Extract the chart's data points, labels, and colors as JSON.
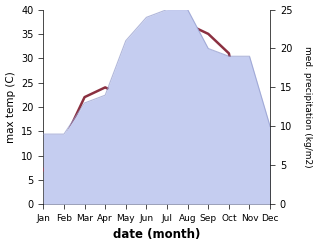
{
  "months": [
    "Jan",
    "Feb",
    "Mar",
    "Apr",
    "May",
    "Jun",
    "Jul",
    "Aug",
    "Sep",
    "Oct",
    "Nov",
    "Dec"
  ],
  "temperature": [
    7,
    13,
    22,
    24,
    22,
    31,
    32,
    37,
    35,
    31,
    11,
    11
  ],
  "precipitation": [
    9,
    9,
    13,
    14,
    21,
    24,
    25,
    25,
    20,
    19,
    19,
    10
  ],
  "temp_color": "#8b3040",
  "precip_fill_color": "#c5cdf0",
  "precip_edge_color": "#9099cc",
  "ylim_left": [
    0,
    40
  ],
  "ylim_right": [
    0,
    25
  ],
  "xlabel": "date (month)",
  "ylabel_left": "max temp (C)",
  "ylabel_right": "med. precipitation (kg/m2)",
  "bg_color": "#ffffff",
  "linewidth": 1.8,
  "figsize": [
    3.18,
    2.47
  ],
  "dpi": 100
}
